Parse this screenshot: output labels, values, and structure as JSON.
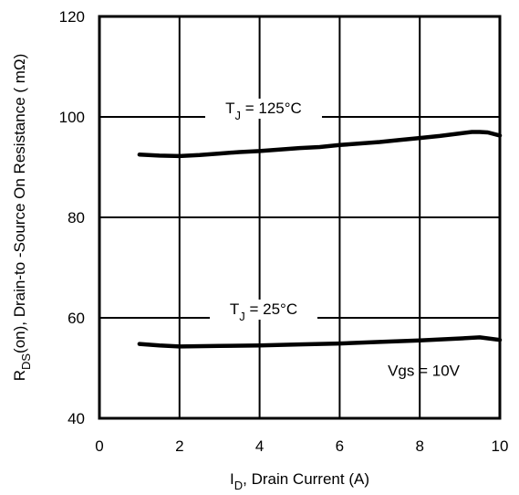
{
  "chart_data": {
    "type": "line",
    "xlabel_main": "I",
    "xlabel_sub": "D",
    "xlabel_rest": ", Drain Current (A)",
    "ylabel_main": "R",
    "ylabel_sub": "DS",
    "ylabel_rest": "(on),   Drain-to -Source On Resistance ( mΩ)",
    "xlim": [
      0,
      10
    ],
    "ylim": [
      40,
      120
    ],
    "x_ticks": [
      "0",
      "2",
      "4",
      "6",
      "8",
      "10"
    ],
    "y_ticks": [
      "40",
      "60",
      "80",
      "100",
      "120"
    ],
    "grid": true,
    "series": [
      {
        "label_main": "T",
        "label_sub": "J",
        "label_rest": " = 125°C",
        "x": [
          1,
          1.5,
          2,
          2.5,
          3,
          3.5,
          4,
          4.5,
          5,
          5.5,
          6,
          6.5,
          7,
          7.5,
          8,
          8.5,
          9,
          9.3,
          9.5,
          9.7,
          10
        ],
        "y": [
          92.5,
          92.3,
          92.2,
          92.4,
          92.7,
          93.0,
          93.2,
          93.5,
          93.8,
          94.0,
          94.4,
          94.7,
          95.0,
          95.4,
          95.8,
          96.2,
          96.7,
          97.0,
          97.0,
          96.9,
          96.3
        ]
      },
      {
        "label_main": "T",
        "label_sub": "J",
        "label_rest": " = 25°C",
        "x": [
          1,
          1.5,
          2,
          3,
          4,
          5,
          6,
          7,
          8,
          9,
          9.5,
          10
        ],
        "y": [
          54.8,
          54.5,
          54.3,
          54.4,
          54.5,
          54.7,
          54.9,
          55.2,
          55.5,
          55.9,
          56.1,
          55.6
        ]
      }
    ],
    "annotation": "Vgs = 10V"
  }
}
